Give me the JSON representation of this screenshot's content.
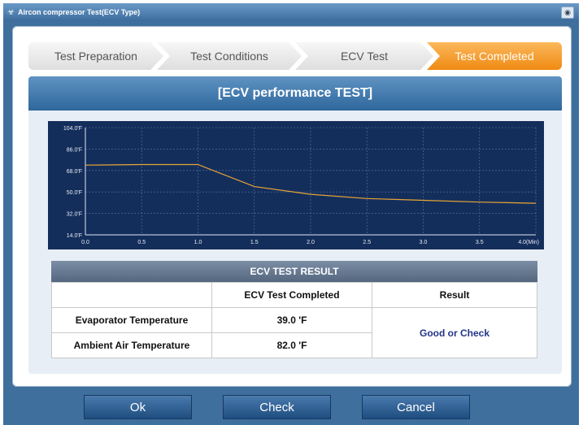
{
  "window": {
    "title": "Aircon compressor Test(ECV Type)"
  },
  "steps": [
    {
      "label": "Test Preparation",
      "active": false
    },
    {
      "label": "Test Conditions",
      "active": false
    },
    {
      "label": "ECV Test",
      "active": false
    },
    {
      "label": "Test Completed",
      "active": true
    }
  ],
  "panel": {
    "title": "[ECV performance TEST]"
  },
  "chart_data": {
    "type": "line",
    "title": "",
    "xlabel": "",
    "ylabel": "",
    "xlim": [
      0,
      4.0
    ],
    "ylim": [
      14.0,
      104.0
    ],
    "x_ticks": [
      "0.0",
      "0.5",
      "1.0",
      "1.5",
      "2.0",
      "2.5",
      "3.0",
      "3.5",
      "4.0(Min)"
    ],
    "y_ticks": [
      "104.0'F",
      "86.0'F",
      "68.0'F",
      "50.0'F",
      "32.0'F",
      "14.0'F"
    ],
    "grid": true,
    "series": [
      {
        "color": "#e8a636",
        "x": [
          0.0,
          0.5,
          1.0,
          1.5,
          2.0,
          2.5,
          3.0,
          3.5,
          4.0
        ],
        "y": [
          72.5,
          73.0,
          73.0,
          54.5,
          48.0,
          44.5,
          43.0,
          41.5,
          40.5
        ]
      }
    ]
  },
  "results": {
    "title": "ECV TEST RESULT",
    "col_headers": [
      "",
      "ECV Test Completed",
      "Result"
    ],
    "rows": [
      {
        "label": "Evaporator Temperature",
        "value": "39.0 'F"
      },
      {
        "label": "Ambient Air Temperature",
        "value": "82.0 'F"
      }
    ],
    "result_text": "Good or Check"
  },
  "buttons": {
    "ok": "Ok",
    "check": "Check",
    "cancel": "Cancel"
  }
}
